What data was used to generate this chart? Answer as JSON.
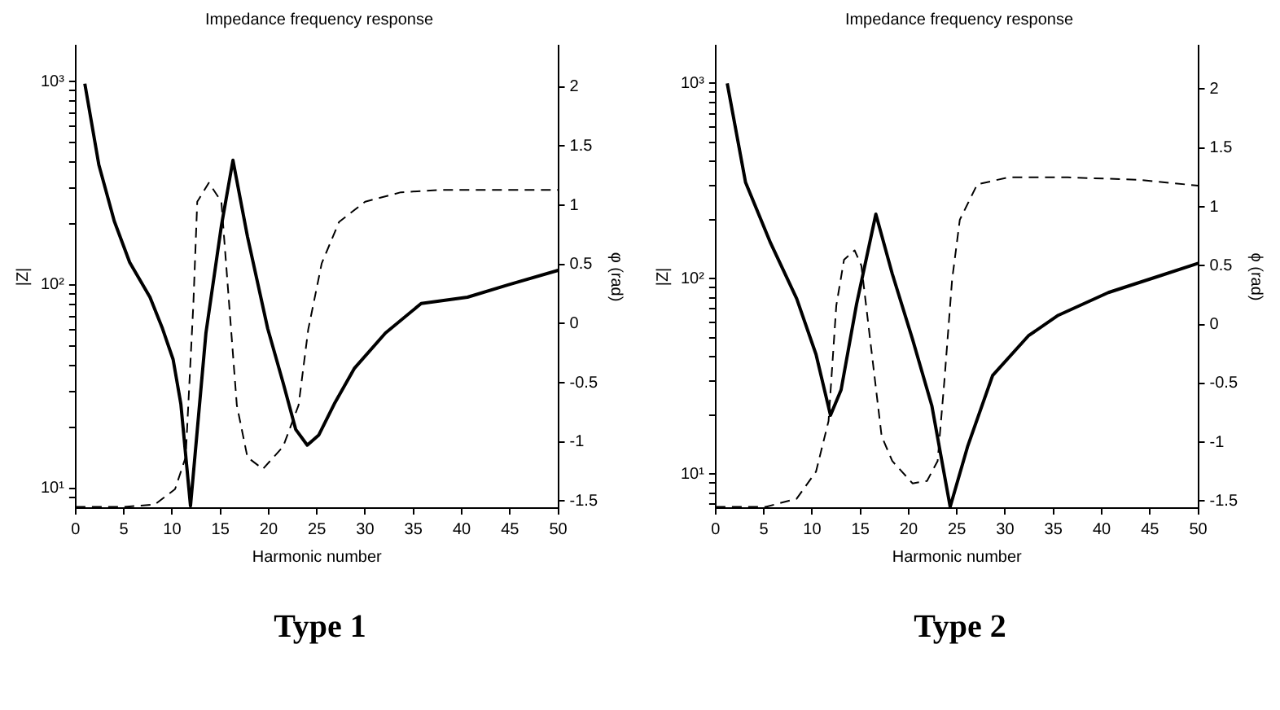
{
  "chart_data": [
    {
      "type": "line",
      "title": "Impedance frequency response",
      "xlabel": "Harmonic number",
      "ylabel": "|Z|",
      "y2label": "φ (rad)",
      "annotations": [
        "Type 1"
      ],
      "log": "y",
      "marker": "none",
      "xlim": [
        0,
        50
      ],
      "xticks": [
        0,
        5,
        10,
        15,
        20,
        25,
        30,
        35,
        40,
        45,
        50
      ],
      "ylim": [
        8,
        1500
      ],
      "yticks": [
        {
          "value": 9,
          "label": null
        },
        {
          "value": 10,
          "label": "10¹"
        },
        {
          "value": 20,
          "label": null
        },
        {
          "value": 30,
          "label": null
        },
        {
          "value": 40,
          "label": null
        },
        {
          "value": 50,
          "label": null
        },
        {
          "value": 60,
          "label": null
        },
        {
          "value": 70,
          "label": null
        },
        {
          "value": 80,
          "label": null
        },
        {
          "value": 90,
          "label": null
        },
        {
          "value": 100,
          "label": "10²"
        },
        {
          "value": 200,
          "label": null
        },
        {
          "value": 300,
          "label": null
        },
        {
          "value": 400,
          "label": null
        },
        {
          "value": 500,
          "label": null
        },
        {
          "value": 600,
          "label": null
        },
        {
          "value": 700,
          "label": null
        },
        {
          "value": 800,
          "label": null
        },
        {
          "value": 900,
          "label": null
        },
        {
          "value": 1000,
          "label": "10³"
        }
      ],
      "y2lim": [
        -1.56,
        2.35
      ],
      "y2ticks": [
        -1.5,
        -1,
        -0.5,
        0,
        0.5,
        1,
        1.5,
        2
      ],
      "series": [
        {
          "color": "#000000",
          "line_style": "solid",
          "x": [
            0.95,
            2.4,
            4,
            5.6,
            7.7,
            9,
            10.1,
            10.9,
            11.9,
            13.5,
            15.1,
            16.3,
            17.8,
            19.9,
            21.5,
            22.8,
            24,
            25.2,
            26.8,
            28.9,
            32.1,
            35.8,
            40.6,
            44.8,
            50
          ],
          "values": [
            975,
            390,
            206,
            129,
            87,
            61,
            43,
            26,
            8.2,
            58,
            195,
            410,
            173,
            61,
            33,
            19.5,
            16.3,
            18.3,
            26,
            39,
            58,
            81,
            87,
            100,
            118
          ]
        },
        {
          "color": "#000000",
          "line_style": "dashed",
          "axis": "y2",
          "x": [
            0,
            5,
            8.2,
            10.3,
            11.4,
            12.2,
            12.6,
            13.8,
            15.1,
            15.9,
            16.7,
            17.8,
            19.4,
            21.5,
            23.1,
            24.1,
            25.5,
            27.3,
            30,
            33.7,
            37.9,
            50
          ],
          "values": [
            -1.55,
            -1.55,
            -1.53,
            -1.4,
            -1.13,
            0.17,
            1.03,
            1.19,
            1.03,
            0.17,
            -0.69,
            -1.13,
            -1.23,
            -1.04,
            -0.69,
            -0.05,
            0.51,
            0.86,
            1.03,
            1.11,
            1.13,
            1.13
          ]
        }
      ]
    },
    {
      "type": "line",
      "title": "Impedance frequency response",
      "xlabel": "Harmonic number",
      "ylabel": "|Z|",
      "y2label": "ϕ (rad)",
      "annotations": [
        "Type 2"
      ],
      "log": "y",
      "marker": "none",
      "xlim": [
        0,
        50
      ],
      "xticks": [
        0,
        5,
        10,
        15,
        20,
        25,
        30,
        35,
        40,
        45,
        50
      ],
      "ylim": [
        6.7,
        1560
      ],
      "yticks": [
        {
          "value": 7,
          "label": null
        },
        {
          "value": 8,
          "label": null
        },
        {
          "value": 9,
          "label": null
        },
        {
          "value": 10,
          "label": "10¹"
        },
        {
          "value": 20,
          "label": null
        },
        {
          "value": 30,
          "label": null
        },
        {
          "value": 40,
          "label": null
        },
        {
          "value": 50,
          "label": null
        },
        {
          "value": 60,
          "label": null
        },
        {
          "value": 70,
          "label": null
        },
        {
          "value": 80,
          "label": null
        },
        {
          "value": 90,
          "label": null
        },
        {
          "value": 100,
          "label": "10²"
        },
        {
          "value": 200,
          "label": null
        },
        {
          "value": 300,
          "label": null
        },
        {
          "value": 400,
          "label": null
        },
        {
          "value": 500,
          "label": null
        },
        {
          "value": 600,
          "label": null
        },
        {
          "value": 700,
          "label": null
        },
        {
          "value": 800,
          "label": null
        },
        {
          "value": 900,
          "label": null
        },
        {
          "value": 1000,
          "label": "10³"
        }
      ],
      "y2lim": [
        -1.56,
        2.37
      ],
      "y2ticks": [
        -1.5,
        -1,
        -0.5,
        0,
        0.5,
        1,
        1.5,
        2
      ],
      "series": [
        {
          "color": "#000000",
          "line_style": "solid",
          "x": [
            1.2,
            3.1,
            5.7,
            8.4,
            10.4,
            11.9,
            13,
            14.6,
            16.6,
            18.3,
            20.4,
            22.4,
            24.3,
            26.1,
            28.7,
            32.4,
            35.5,
            40.7,
            45.9,
            50
          ],
          "values": [
            1000,
            311,
            152,
            79,
            41,
            20,
            27,
            74,
            214,
            106,
            49,
            22.4,
            6.8,
            13.8,
            32,
            51,
            65,
            85,
            103,
            120
          ]
        },
        {
          "color": "#000000",
          "line_style": "dashed",
          "axis": "y2",
          "x": [
            0,
            5.2,
            8.4,
            10.4,
            11.7,
            12.5,
            13.3,
            14.4,
            15.1,
            16.2,
            17.2,
            18.3,
            20.4,
            21.9,
            23,
            23.7,
            24.5,
            25.3,
            27.1,
            30.3,
            36.5,
            43.8,
            50
          ],
          "values": [
            -1.55,
            -1.55,
            -1.48,
            -1.25,
            -0.82,
            0.16,
            0.55,
            0.63,
            0.5,
            -0.26,
            -0.95,
            -1.16,
            -1.35,
            -1.33,
            -1.16,
            -0.48,
            0.38,
            0.89,
            1.19,
            1.25,
            1.25,
            1.23,
            1.18
          ]
        }
      ]
    }
  ]
}
